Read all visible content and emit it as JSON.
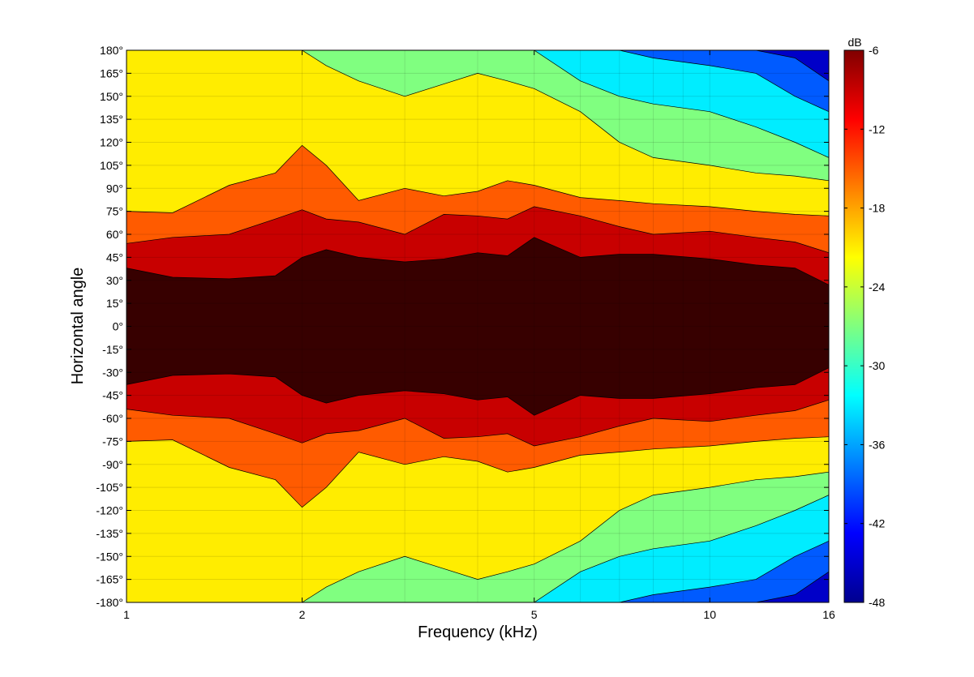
{
  "chart_data": {
    "type": "contour",
    "xlabel": "Frequency (kHz)",
    "ylabel": "Horizontal angle",
    "x_scale": "log",
    "xlim": [
      1,
      16
    ],
    "ylim": [
      -180,
      180
    ],
    "x_ticks": [
      1,
      2,
      5,
      10,
      16
    ],
    "x_tick_labels": [
      "1",
      "2",
      "5",
      "10",
      "16"
    ],
    "y_ticks": [
      -180,
      -165,
      -150,
      -135,
      -120,
      -105,
      -90,
      -75,
      -60,
      -45,
      -30,
      -15,
      0,
      15,
      30,
      45,
      60,
      75,
      90,
      105,
      120,
      135,
      150,
      165,
      180
    ],
    "y_tick_labels": [
      "-180°",
      "-165°",
      "-150°",
      "-135°",
      "-120°",
      "-105°",
      "-90°",
      "-75°",
      "-60°",
      "-45°",
      "-30°",
      "-15°",
      "0°",
      "15°",
      "30°",
      "45°",
      "60°",
      "75°",
      "90°",
      "105°",
      "120°",
      "135°",
      "150°",
      "165°",
      "180°"
    ],
    "colorbar": {
      "title": "dB",
      "ticks": [
        -6,
        -12,
        -18,
        -24,
        -30,
        -36,
        -42,
        -48
      ],
      "tick_labels": [
        "-6",
        "-12",
        "-18",
        "-24",
        "-30",
        "-36",
        "-42",
        "-48"
      ],
      "range": [
        -48,
        -6
      ],
      "colormap": "jet"
    },
    "symmetric_about_zero": true,
    "contour_levels_db": [
      -6,
      -12,
      -18,
      -24,
      -30,
      -36,
      -42
    ],
    "contour_half_angle_boundaries": {
      "frequency_khz": [
        1.0,
        1.2,
        1.5,
        1.8,
        2.0,
        2.2,
        2.5,
        3.0,
        3.5,
        4.0,
        4.5,
        5.0,
        6.0,
        7.0,
        8.0,
        10.0,
        12.0,
        14.0,
        16.0
      ],
      "angle_deg_at_minus_6db": [
        38,
        32,
        31,
        33,
        45,
        50,
        45,
        42,
        44,
        48,
        46,
        58,
        45,
        47,
        47,
        44,
        40,
        38,
        27
      ],
      "angle_deg_at_minus_12db": [
        54,
        58,
        60,
        70,
        76,
        70,
        68,
        60,
        73,
        72,
        70,
        78,
        72,
        65,
        60,
        62,
        58,
        55,
        48
      ],
      "angle_deg_at_minus_18db": [
        75,
        74,
        92,
        100,
        118,
        105,
        82,
        90,
        85,
        88,
        95,
        92,
        84,
        82,
        80,
        78,
        75,
        73,
        72
      ],
      "angle_deg_at_minus_24db": [
        180,
        180,
        180,
        180,
        180,
        170,
        160,
        150,
        158,
        165,
        160,
        155,
        140,
        120,
        110,
        105,
        100,
        98,
        95
      ],
      "angle_deg_at_minus_30db": [
        180,
        180,
        180,
        180,
        180,
        180,
        180,
        180,
        180,
        180,
        180,
        180,
        160,
        150,
        145,
        140,
        130,
        120,
        110
      ],
      "angle_deg_at_minus_36db": [
        180,
        180,
        180,
        180,
        180,
        180,
        180,
        180,
        180,
        180,
        180,
        180,
        180,
        180,
        175,
        170,
        165,
        150,
        140
      ],
      "angle_deg_at_minus_42db": [
        180,
        180,
        180,
        180,
        180,
        180,
        180,
        180,
        180,
        180,
        180,
        180,
        180,
        180,
        180,
        180,
        180,
        175,
        160
      ]
    },
    "grid": true,
    "legend": "colorbar-right"
  }
}
